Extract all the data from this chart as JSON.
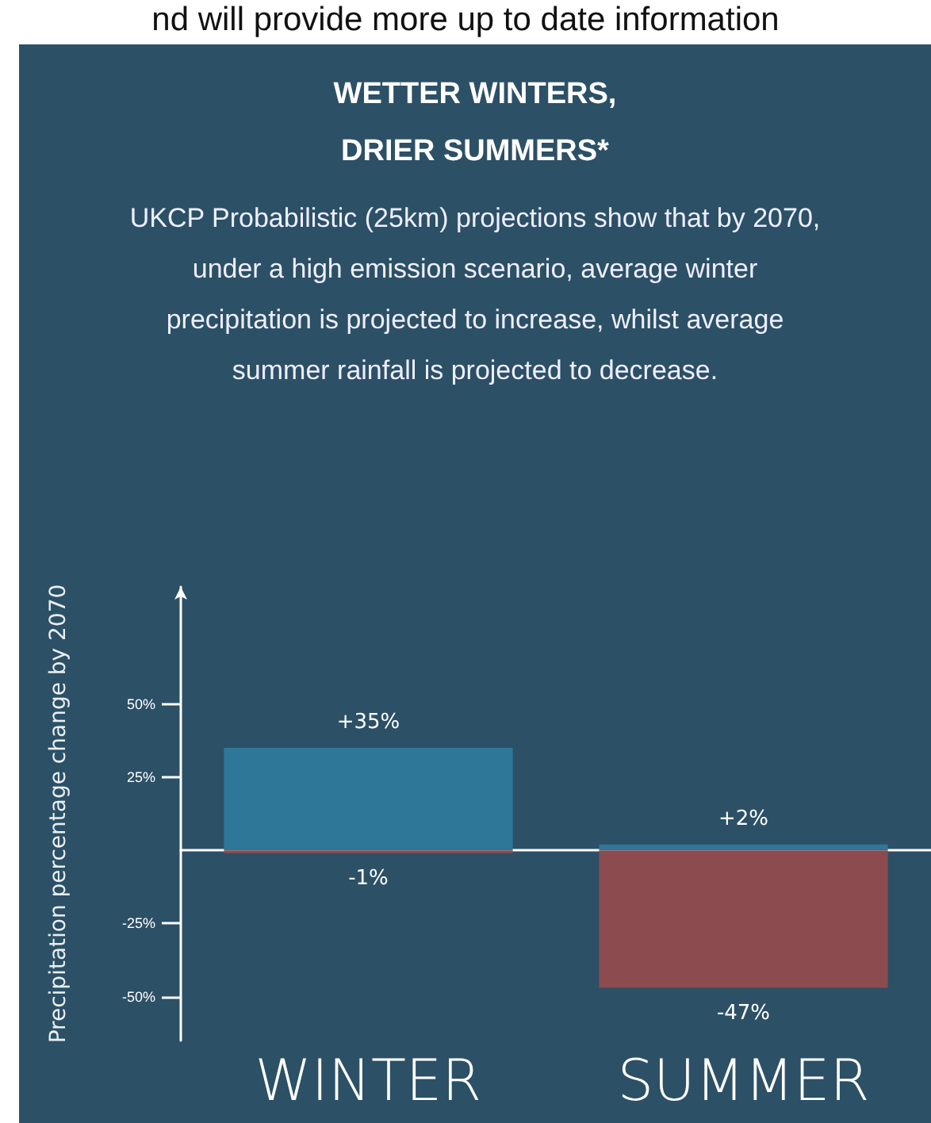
{
  "chart_data": {
    "type": "bar",
    "title": "WETTER WINTERS, DRIER SUMMERS*",
    "subtitle": "UKCP Probabilistic (25km) projections show that by 2070, under a high emission scenario, average winter precipitation is projected to increase, whilst average summer rainfall is projected to decrease.",
    "annotations": [
      "nd will provide more up to date information"
    ],
    "ylabel": "Precipitation percentage change by 2070",
    "categories": [
      "WINTER",
      "SUMMER"
    ],
    "stacked": true,
    "series": [
      {
        "color": "#2e7799",
        "values": [
          35,
          2
        ],
        "value_labels": [
          "+35%",
          "+2%"
        ]
      },
      {
        "color": "#8c4c4f",
        "values": [
          -1,
          -47
        ],
        "value_labels": [
          "-1%",
          "-47%"
        ]
      }
    ],
    "ylim": [
      -65,
      90
    ],
    "yticks": [
      {
        "value": -50,
        "label": "-50%"
      },
      {
        "value": -25,
        "label": "-25%"
      },
      {
        "value": 25,
        "label": "25%"
      },
      {
        "value": 50,
        "label": "50%"
      }
    ],
    "grid": false
  }
}
